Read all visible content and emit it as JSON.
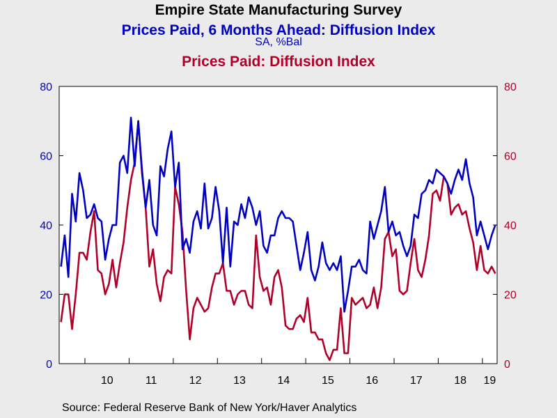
{
  "header": {
    "title": "Empire State Manufacturing Survey",
    "series1_title": "Prices Paid, 6 Months Ahead: Diffusion Index",
    "units": "SA, %Bal",
    "series2_title": "Prices Paid: Diffusion Index"
  },
  "source": "Source:  Federal Reserve Bank of New York/Haver Analytics",
  "colors": {
    "series1": "#0000c0",
    "series2": "#b0002a",
    "background": "#ebebeb",
    "plot": "#ffffff"
  },
  "chart_data": {
    "type": "line",
    "x_start": "2009-06",
    "frequency": "monthly",
    "x_tick_labels": [
      "10",
      "11",
      "12",
      "13",
      "14",
      "15",
      "16",
      "17",
      "18",
      "19"
    ],
    "ylim_left": [
      0,
      80
    ],
    "ylim_right": [
      0,
      80
    ],
    "y_ticks": [
      0,
      20,
      40,
      60,
      80
    ],
    "grid": false,
    "series": [
      {
        "name": "Prices Paid, 6 Months Ahead: Diffusion Index",
        "axis": "left",
        "values": [
          28,
          37,
          25,
          49,
          41,
          55,
          50,
          42,
          43,
          46,
          42,
          41,
          30,
          36,
          40,
          40,
          58,
          60,
          55,
          71,
          57,
          70,
          56,
          45,
          53,
          40,
          37,
          57,
          54,
          62,
          67,
          51,
          58,
          33,
          36,
          32,
          41,
          44,
          39,
          52,
          39,
          42,
          51,
          44,
          29,
          45,
          28,
          41,
          40,
          46,
          42,
          48,
          45,
          40,
          44,
          34,
          32,
          37,
          37,
          42,
          44,
          42,
          42,
          41,
          34,
          27,
          32,
          38,
          27,
          24,
          28,
          35,
          29,
          27,
          29,
          27,
          31,
          15,
          21,
          28,
          28,
          30,
          27,
          26,
          41,
          36,
          40,
          44,
          51,
          38,
          41,
          37,
          38,
          34,
          31,
          34,
          43,
          42,
          49,
          50,
          53,
          52,
          56,
          55,
          54,
          52,
          49,
          53,
          56,
          53,
          59,
          52,
          48,
          37,
          41,
          37,
          33,
          37,
          40
        ]
      },
      {
        "name": "Prices Paid: Diffusion Index",
        "axis": "right",
        "values": [
          12,
          20,
          20,
          10,
          20,
          32,
          32,
          30,
          38,
          44,
          27,
          26,
          20,
          23,
          30,
          22,
          29,
          35,
          45,
          53,
          58,
          70,
          55,
          45,
          28,
          33,
          23,
          18,
          25,
          27,
          26,
          51,
          46,
          38,
          21,
          7,
          16,
          19,
          17,
          15,
          16,
          22,
          26,
          26,
          29,
          21,
          21,
          17,
          20,
          21,
          21,
          17,
          16,
          37,
          25,
          21,
          22,
          17,
          25,
          27,
          22,
          11,
          10,
          10,
          13,
          14,
          12,
          19,
          9,
          9,
          7,
          7,
          3,
          1,
          4,
          4,
          16,
          3,
          3,
          19,
          17,
          18,
          19,
          16,
          17,
          22,
          16,
          22,
          36,
          38,
          31,
          33,
          21,
          20,
          21,
          29,
          36,
          27,
          25,
          30,
          37,
          49,
          50,
          47,
          54,
          52,
          43,
          45,
          46,
          43,
          44,
          39,
          35,
          27,
          34,
          27,
          26,
          28,
          26
        ]
      }
    ]
  }
}
